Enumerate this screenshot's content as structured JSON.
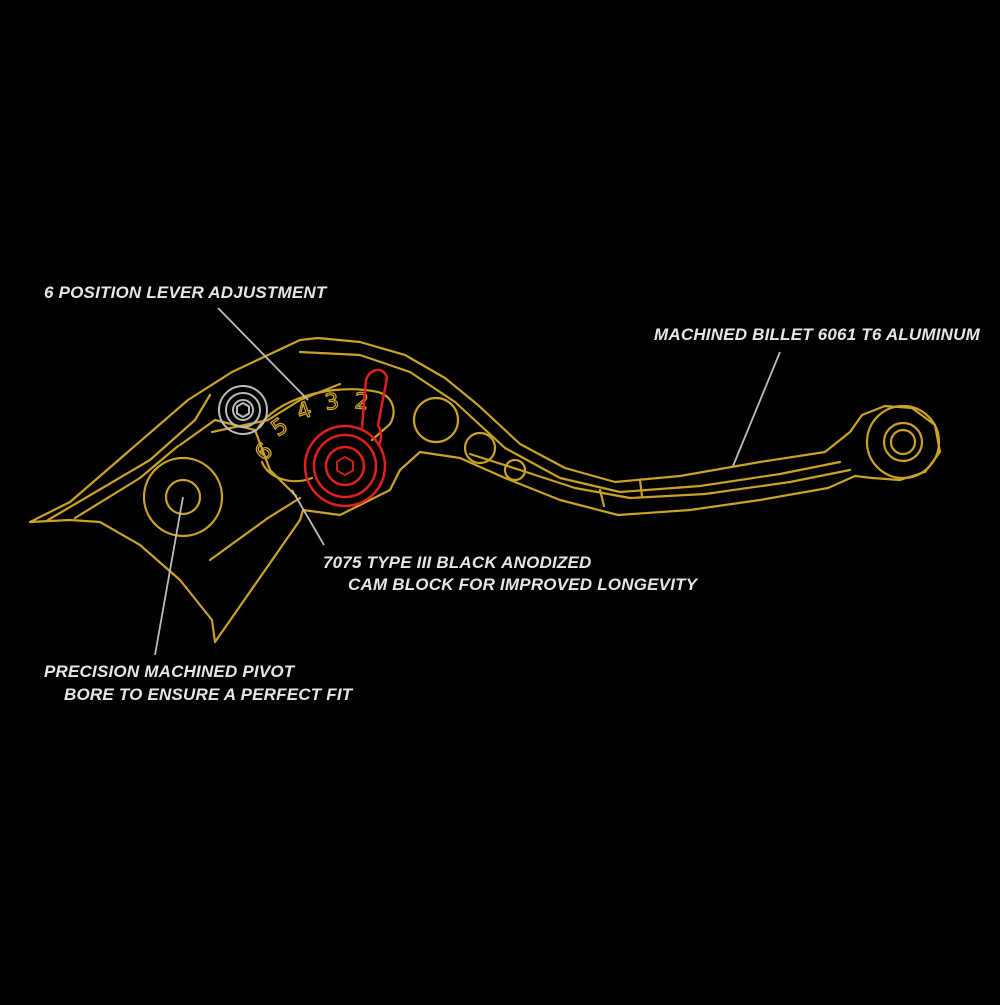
{
  "colors": {
    "background": "#000000",
    "lever_outline": "#c9a227",
    "cam_block": "#e02020",
    "screw": "#bbbbbb",
    "leader": "#bcbcbc",
    "text": "#e6e6e6"
  },
  "callouts": {
    "lever_adjustment": "6 POSITION LEVER ADJUSTMENT",
    "material": "MACHINED BILLET 6061 T6 ALUMINUM",
    "cam_block_line1": "7075 TYPE III BLACK ANODIZED",
    "cam_block_line2": "CAM BLOCK FOR IMPROVED LONGEVITY",
    "pivot_line1": "PRECISION MACHINED PIVOT",
    "pivot_line2": "BORE  TO ENSURE A PERFECT FIT"
  },
  "adjuster": {
    "positions": [
      "6",
      "5",
      "4",
      "3",
      "2"
    ]
  },
  "icons": {
    "lever": "brake-lever-outline",
    "cam": "cam-block-red",
    "screw": "hex-screw"
  }
}
